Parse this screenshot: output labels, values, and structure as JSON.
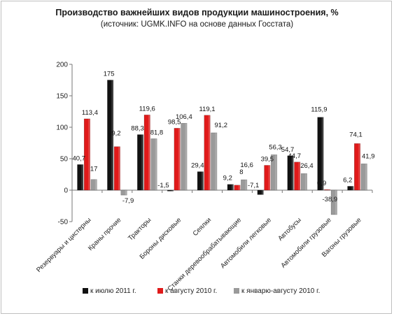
{
  "chart_data": {
    "type": "bar",
    "title": "Производство важнейших видов продукции машиностроения, %",
    "subtitle": "(источник: UGMK.INFO на основе данных Госстата)",
    "ylim": [
      -50,
      200
    ],
    "yticks": [
      "-50",
      "0",
      "50",
      "100",
      "150",
      "200"
    ],
    "categories": [
      "Резервуары и цистерны",
      "Краны прочие",
      "Тракторы",
      "Бороны дисковые",
      "Сеялки",
      "Станки деревообрабатывающие",
      "Автомобили легковые",
      "Автобусы",
      "Автомобили грузовые",
      "Вагоны грузовые"
    ],
    "series": [
      {
        "name": "к июлю 2011 г.",
        "color": "#111111",
        "values": [
          40.7,
          175,
          88.3,
          -1.5,
          29.4,
          9.2,
          -7.1,
          54.7,
          115.9,
          6.2
        ],
        "labels": [
          "40,7",
          "175",
          "88,3",
          "-1,5",
          "29,4",
          "9,2",
          "-7,1",
          "54,7",
          "115,9",
          "6,2"
        ]
      },
      {
        "name": "к августу 2010 г.",
        "color": "#e01a1a",
        "values": [
          113.4,
          69.2,
          119.6,
          98.5,
          119.1,
          8,
          39.5,
          44.7,
          0.9,
          74.1
        ],
        "labels": [
          "113,4",
          "69,2",
          "119,6",
          "98,5",
          "119,1",
          "8",
          "39,5",
          "44,7",
          "0,9",
          "74,1"
        ]
      },
      {
        "name": "к январю-августу 2010 г.",
        "color": "#9a9a9a",
        "values": [
          17,
          -7.9,
          81.8,
          106.4,
          91.2,
          16.6,
          56.3,
          26.4,
          -38.9,
          41.9
        ],
        "labels": [
          "17",
          "-7,9",
          "81,8",
          "106,4",
          "91,2",
          "16,6",
          "56,3",
          "26,4",
          "-38,9",
          "41,9"
        ]
      }
    ]
  }
}
